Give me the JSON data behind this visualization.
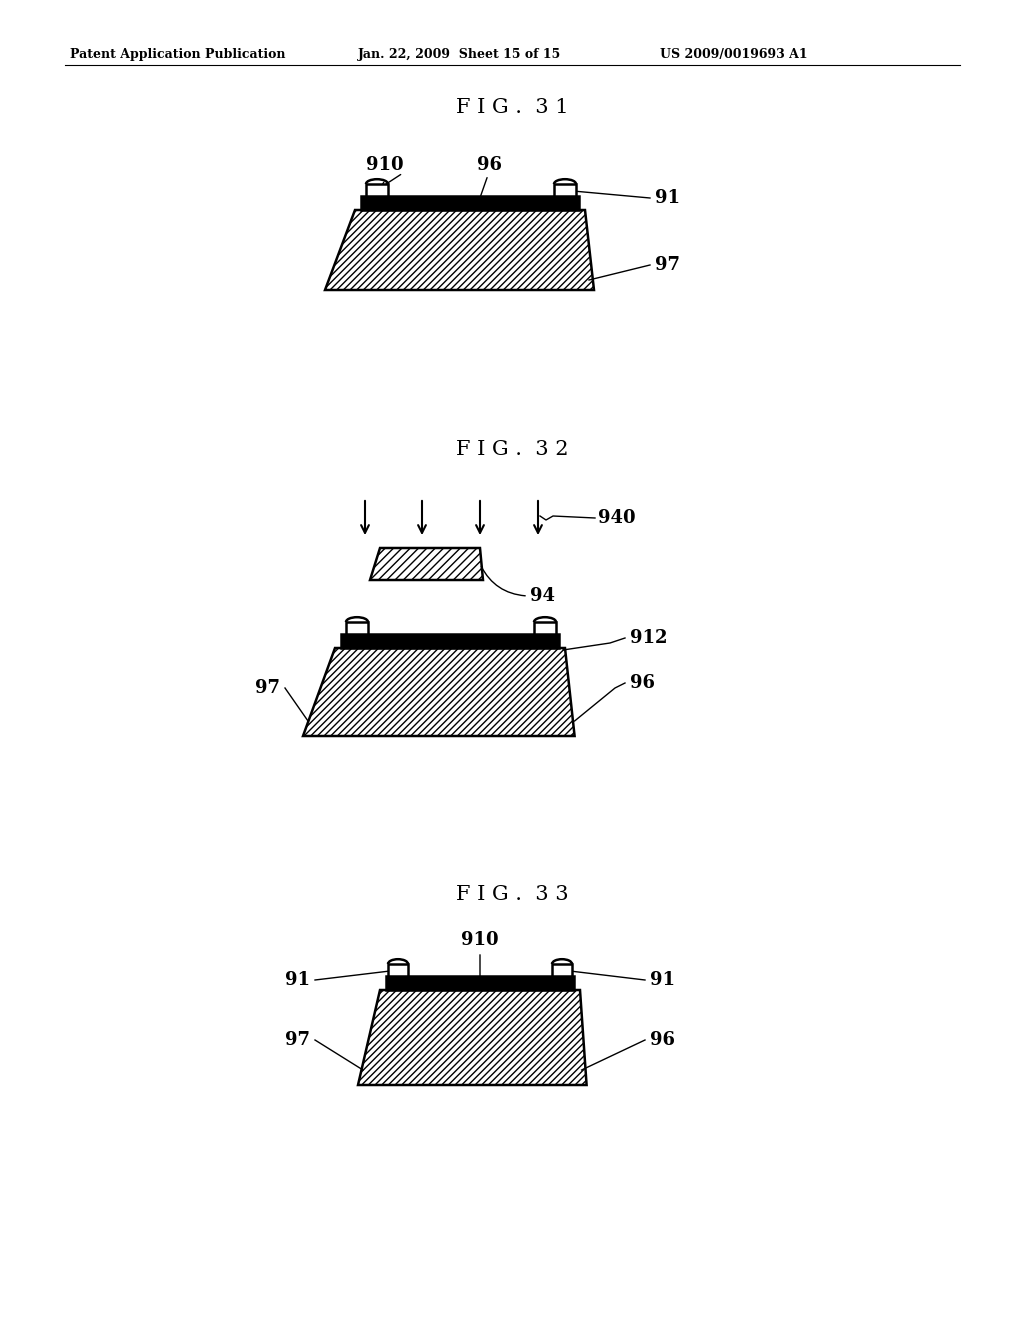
{
  "bg_color": "#ffffff",
  "header_left": "Patent Application Publication",
  "header_mid": "Jan. 22, 2009  Sheet 15 of 15",
  "header_right": "US 2009/0019693 A1",
  "fig31_title": "F I G .  3 1",
  "fig32_title": "F I G .  3 2",
  "fig33_title": "F I G .  3 3",
  "line_color": "#000000"
}
